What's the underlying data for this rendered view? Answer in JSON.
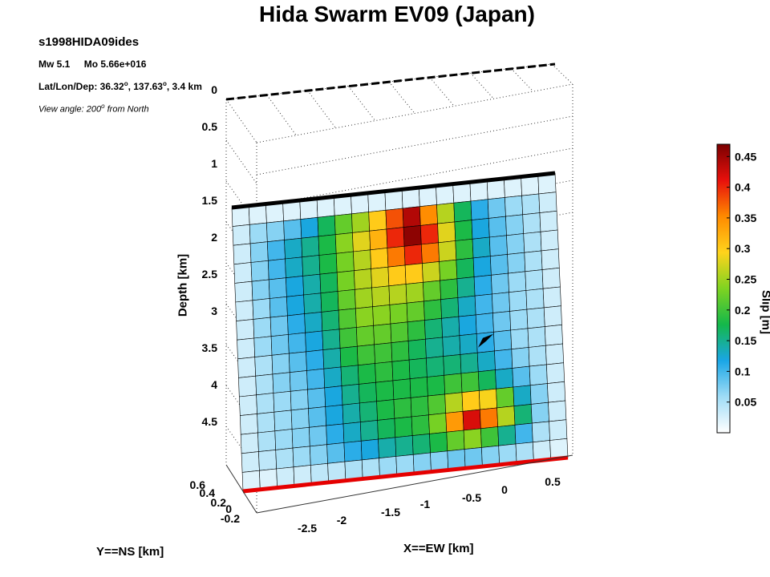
{
  "header": {
    "title": "Hida Swarm EV09 (Japan)",
    "event_id": "s1998HIDA09ides",
    "magnitude": "Mw 5.1",
    "moment": "Mo 5.66e+016",
    "location_prefix": "Lat/Lon/Dep: 36.32",
    "location_mid": ", 137.63",
    "location_end": ", 3.4 km",
    "view_prefix": "View angle: 200",
    "view_end": " from North",
    "degree": "o"
  },
  "chart_data": {
    "type": "heatmap",
    "title": "Hida Swarm EV09 (Japan)",
    "xlabel": "X==EW [km]",
    "ylabel": "Y==NS [km]",
    "zlabel": "Depth [km]",
    "colorbar_label": "Slip [m]",
    "depth_ticks": [
      "0",
      "0.5",
      "1",
      "1.5",
      "2",
      "2.5",
      "3",
      "3.5",
      "4",
      "4.5"
    ],
    "ew_ticks": [
      "-2.5",
      "-2",
      "-1.5",
      "-1",
      "-0.5",
      "0",
      "0.5"
    ],
    "ns_ticks": [
      "0.6",
      "0.4",
      "0.2",
      "0",
      "-0.2"
    ],
    "colorbar_ticks": [
      "0.45",
      "0.4",
      "0.35",
      "0.3",
      "0.25",
      "0.2",
      "0.15",
      "0.1",
      "0.05"
    ],
    "clim": [
      0,
      0.47
    ],
    "zlim": [
      0,
      5
    ],
    "colormap": [
      "#ffffff",
      "#9fdcf6",
      "#1aa6e6",
      "#14b84a",
      "#7fd321",
      "#ffd31c",
      "#ff8a00",
      "#e8100c",
      "#7a0000"
    ],
    "hypocenter_depth_km": 3.4,
    "grid_rows": 15,
    "grid_cols": 19,
    "slip": [
      [
        0.02,
        0.02,
        0.02,
        0.02,
        0.02,
        0.02,
        0.02,
        0.02,
        0.02,
        0.02,
        0.02,
        0.02,
        0.02,
        0.02,
        0.02,
        0.02,
        0.02,
        0.02,
        0.02
      ],
      [
        0.03,
        0.06,
        0.07,
        0.09,
        0.12,
        0.17,
        0.22,
        0.25,
        0.3,
        0.38,
        0.44,
        0.35,
        0.26,
        0.17,
        0.11,
        0.08,
        0.06,
        0.05,
        0.03
      ],
      [
        0.03,
        0.07,
        0.1,
        0.13,
        0.15,
        0.18,
        0.24,
        0.28,
        0.32,
        0.4,
        0.46,
        0.4,
        0.28,
        0.18,
        0.12,
        0.09,
        0.07,
        0.05,
        0.03
      ],
      [
        0.03,
        0.07,
        0.1,
        0.13,
        0.15,
        0.18,
        0.23,
        0.26,
        0.3,
        0.36,
        0.4,
        0.36,
        0.27,
        0.19,
        0.13,
        0.09,
        0.07,
        0.05,
        0.03
      ],
      [
        0.03,
        0.07,
        0.09,
        0.12,
        0.14,
        0.17,
        0.23,
        0.26,
        0.28,
        0.3,
        0.3,
        0.27,
        0.23,
        0.17,
        0.12,
        0.09,
        0.07,
        0.05,
        0.03
      ],
      [
        0.03,
        0.06,
        0.09,
        0.12,
        0.14,
        0.17,
        0.22,
        0.25,
        0.26,
        0.26,
        0.25,
        0.22,
        0.19,
        0.15,
        0.11,
        0.08,
        0.06,
        0.05,
        0.03
      ],
      [
        0.03,
        0.06,
        0.08,
        0.11,
        0.13,
        0.16,
        0.21,
        0.24,
        0.24,
        0.23,
        0.22,
        0.19,
        0.16,
        0.13,
        0.1,
        0.08,
        0.06,
        0.05,
        0.03
      ],
      [
        0.03,
        0.06,
        0.08,
        0.1,
        0.12,
        0.15,
        0.2,
        0.22,
        0.22,
        0.21,
        0.19,
        0.16,
        0.14,
        0.12,
        0.1,
        0.08,
        0.06,
        0.05,
        0.03
      ],
      [
        0.03,
        0.05,
        0.07,
        0.09,
        0.11,
        0.14,
        0.18,
        0.2,
        0.2,
        0.19,
        0.17,
        0.15,
        0.14,
        0.13,
        0.11,
        0.09,
        0.06,
        0.05,
        0.03
      ],
      [
        0.03,
        0.05,
        0.07,
        0.08,
        0.1,
        0.13,
        0.16,
        0.18,
        0.19,
        0.18,
        0.17,
        0.16,
        0.16,
        0.15,
        0.13,
        0.1,
        0.07,
        0.05,
        0.03
      ],
      [
        0.03,
        0.05,
        0.06,
        0.07,
        0.09,
        0.12,
        0.15,
        0.17,
        0.18,
        0.18,
        0.18,
        0.18,
        0.2,
        0.2,
        0.17,
        0.13,
        0.09,
        0.06,
        0.03
      ],
      [
        0.03,
        0.05,
        0.06,
        0.07,
        0.09,
        0.12,
        0.14,
        0.16,
        0.18,
        0.19,
        0.19,
        0.21,
        0.26,
        0.3,
        0.29,
        0.22,
        0.13,
        0.07,
        0.03
      ],
      [
        0.03,
        0.05,
        0.06,
        0.07,
        0.08,
        0.11,
        0.13,
        0.15,
        0.17,
        0.18,
        0.19,
        0.23,
        0.34,
        0.42,
        0.36,
        0.26,
        0.16,
        0.07,
        0.03
      ],
      [
        0.03,
        0.04,
        0.05,
        0.06,
        0.07,
        0.09,
        0.11,
        0.12,
        0.14,
        0.15,
        0.16,
        0.18,
        0.22,
        0.24,
        0.2,
        0.15,
        0.1,
        0.05,
        0.03
      ],
      [
        0.02,
        0.02,
        0.03,
        0.03,
        0.04,
        0.04,
        0.05,
        0.05,
        0.06,
        0.06,
        0.07,
        0.07,
        0.08,
        0.08,
        0.07,
        0.06,
        0.05,
        0.03,
        0.02
      ]
    ]
  }
}
